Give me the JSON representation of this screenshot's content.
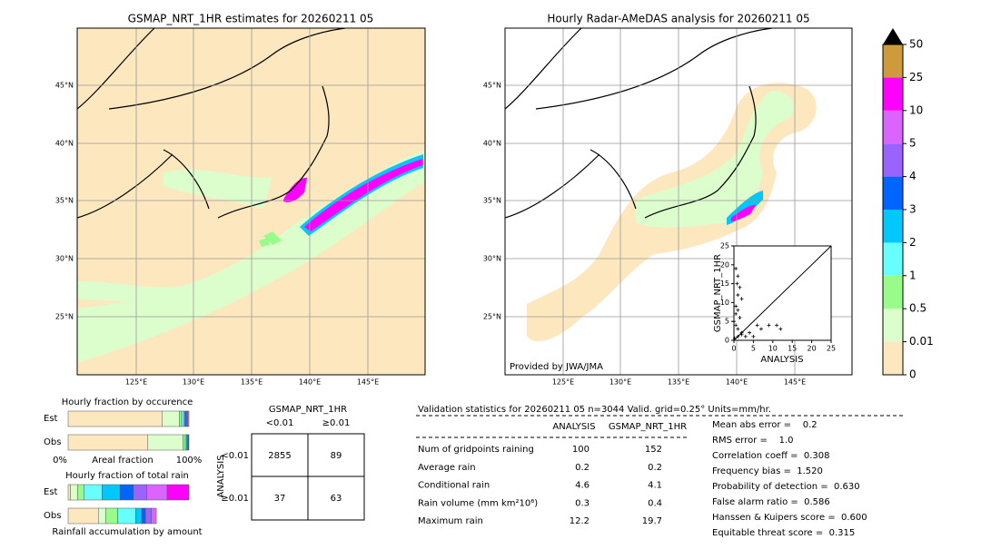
{
  "maps": [
    {
      "title": "GSMAP_NRT_1HR estimates for 20260211 05",
      "lat_labels": [
        "45°N",
        "40°N",
        "35°N",
        "30°N",
        "25°N"
      ],
      "lon_labels": [
        "125°E",
        "130°E",
        "135°E",
        "140°E",
        "145°E"
      ]
    },
    {
      "title": "Hourly Radar-AMeDAS analysis for 20260211 05",
      "lat_labels": [
        "45°N",
        "40°N",
        "35°N",
        "30°N",
        "25°N"
      ],
      "lon_labels": [
        "125°E",
        "130°E",
        "135°E",
        "140°E",
        "145°E"
      ],
      "credit": "Provided by JWA/JMA"
    }
  ],
  "colorbar": {
    "levels": [
      0,
      0.01,
      0.5,
      1,
      2,
      3,
      4,
      5,
      10,
      25,
      50
    ],
    "colors": [
      "#fde7bf",
      "#dcfdcc",
      "#98fb8a",
      "#66fffe",
      "#00c8fc",
      "#0064ff",
      "#9a63fe",
      "#dc64fe",
      "#fe00fe",
      "#cd9a3c"
    ]
  },
  "scatter": {
    "type": "scatter",
    "xlabel": "ANALYSIS",
    "ylabel": "GSMAP_NRT_1HR",
    "xlim": [
      0,
      25
    ],
    "ylim": [
      0,
      25
    ],
    "xticks": [
      0,
      5,
      10,
      15,
      20,
      25
    ],
    "yticks": [
      0,
      5,
      10,
      15,
      20,
      25
    ],
    "x": [
      0.5,
      1,
      0.8,
      1.5,
      1,
      2,
      0.5,
      1,
      0.5,
      1.5,
      0,
      0.5,
      1,
      2,
      3,
      5,
      1,
      0.2,
      6,
      7,
      9,
      11,
      12,
      4,
      2
    ],
    "y": [
      19,
      17,
      15,
      14,
      12,
      11,
      9,
      8,
      7,
      6,
      5,
      4,
      3,
      2,
      1,
      1,
      1,
      0.5,
      4,
      3,
      4,
      4,
      3,
      2,
      1.5
    ]
  },
  "fraction": {
    "title_occurrence": "Hourly fraction by occurence",
    "title_rain": "Hourly fraction of total rain",
    "rows": [
      "Est",
      "Obs"
    ],
    "axis_left": "0%",
    "axis_mid": "Areal fraction",
    "axis_right": "100%",
    "footer": "Rainfall accumulation by amount",
    "occurrence": [
      [
        0.78,
        0.14,
        0.02,
        0.02,
        0.01,
        0.01,
        0.01,
        0.01
      ],
      [
        0.66,
        0.29,
        0.02,
        0.01,
        0.01,
        0.01
      ]
    ],
    "rain": [
      [
        0.02,
        0.06,
        0.05,
        0.15,
        0.15,
        0.11,
        0.11,
        0.17,
        0.18
      ],
      [
        0.25,
        0.06,
        0.1,
        0.15,
        0.05,
        0.03,
        0.05,
        0.04
      ]
    ]
  },
  "contingency": {
    "title": "GSMAP_NRT_1HR",
    "columns": [
      "<0.01",
      "≥0.01"
    ],
    "row_title": "ANALYSIS",
    "rows": [
      "<0.01",
      "≥0.01"
    ],
    "cells": [
      [
        "2855",
        "89"
      ],
      [
        "37",
        "63"
      ]
    ]
  },
  "validation": {
    "header": "Validation statistics for 20260211 05  n=3044 Valid. grid=0.25° Units=mm/hr.",
    "columns": [
      "ANALYSIS",
      "GSMAP_NRT_1HR"
    ],
    "rows": [
      [
        "Num of gridpoints raining",
        "100",
        "152"
      ],
      [
        "Average rain",
        "0.2",
        "0.2"
      ],
      [
        "Conditional rain",
        "4.6",
        "4.1"
      ],
      [
        "Rain volume (mm km²10⁶)",
        "0.3",
        "0.4"
      ],
      [
        "Maximum rain",
        "12.2",
        "19.7"
      ]
    ],
    "scores": [
      "Mean abs error =    0.2",
      "RMS error =    1.0",
      "Correlation coeff =  0.308",
      "Frequency bias =  1.520",
      "Probability of detection =  0.630",
      "False alarm ratio =  0.586",
      "Hanssen & Kuipers score =  0.600",
      "Equitable threat score =  0.315"
    ]
  }
}
